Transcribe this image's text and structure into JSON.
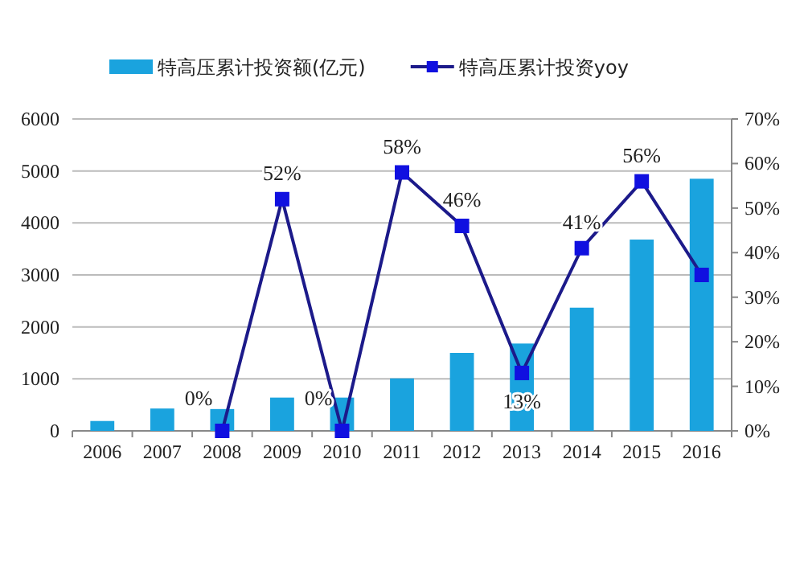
{
  "chart_data": {
    "type": "bar",
    "categories": [
      "2006",
      "2007",
      "2008",
      "2009",
      "2010",
      "2011",
      "2012",
      "2013",
      "2014",
      "2015",
      "2016"
    ],
    "series": [
      {
        "name": "特高压累计投资额(亿元)",
        "color": "#1aa3de",
        "values": [
          190,
          430,
          420,
          640,
          640,
          1010,
          1500,
          1680,
          2370,
          3680,
          4850
        ]
      },
      {
        "name": "特高压累计投资yoy",
        "type": "line",
        "axis": "y2",
        "color": "#1c1a8a",
        "marker": "square",
        "values": [
          null,
          null,
          0,
          52,
          0,
          58,
          46,
          13,
          41,
          56,
          35
        ],
        "value_labels": [
          null,
          null,
          "0%",
          "52%",
          "0%",
          "58%",
          "46%",
          "13%",
          "41%",
          "56%",
          null
        ]
      }
    ],
    "ylim": [
      0,
      6000
    ],
    "yticks": [
      0,
      1000,
      2000,
      3000,
      4000,
      5000,
      6000
    ],
    "y2lim": [
      0,
      70
    ],
    "y2ticks": [
      {
        "value": 0,
        "label": "0%"
      },
      {
        "value": 10,
        "label": "10%"
      },
      {
        "value": 20,
        "label": "20%"
      },
      {
        "value": 30,
        "label": "30%"
      },
      {
        "value": 40,
        "label": "40%"
      },
      {
        "value": 50,
        "label": "50%"
      },
      {
        "value": 60,
        "label": "60%"
      },
      {
        "value": 70,
        "label": "70%"
      }
    ],
    "grid": "y",
    "legend": "top"
  }
}
